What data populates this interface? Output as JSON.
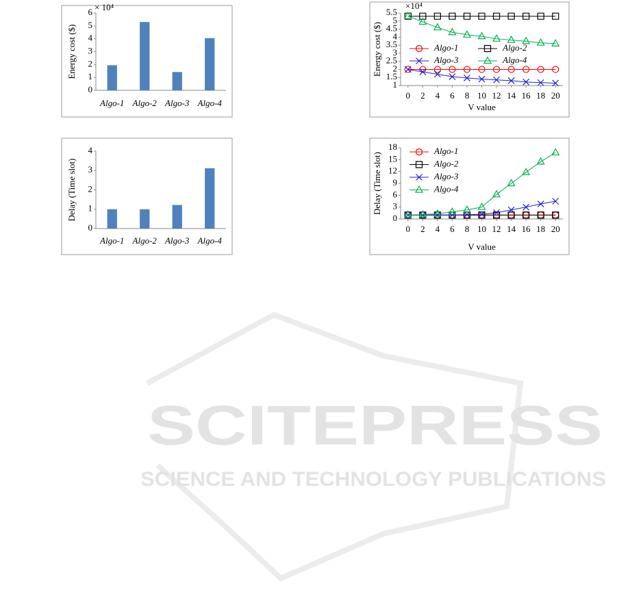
{
  "chart_data": [
    {
      "type": "bar",
      "ylabel": "Energy cost ($)",
      "multiplier": "× 10⁴",
      "categories": [
        "Algo-1",
        "Algo-2",
        "Algo-3",
        "Algo-4"
      ],
      "values": [
        1.95,
        5.3,
        1.42,
        4.05
      ],
      "color": "#4f81bd",
      "ylim": [
        0,
        6
      ],
      "yticks": [
        0,
        1,
        2,
        3,
        4,
        5,
        6
      ]
    },
    {
      "type": "line",
      "ylabel": "Energy cost ($)",
      "multiplier": "×10⁴",
      "xlabel": "V value",
      "x": [
        0,
        2,
        4,
        6,
        8,
        10,
        12,
        14,
        16,
        18,
        20
      ],
      "series": [
        {
          "name": "Algo-1",
          "color": "#ff0000",
          "marker": "circle",
          "values": [
            2.0,
            2.0,
            2.0,
            2.0,
            2.0,
            2.0,
            2.0,
            2.0,
            2.0,
            2.0,
            2.0
          ]
        },
        {
          "name": "Algo-2",
          "color": "#000000",
          "marker": "square",
          "values": [
            5.3,
            5.3,
            5.3,
            5.3,
            5.3,
            5.3,
            5.3,
            5.3,
            5.3,
            5.3,
            5.3
          ]
        },
        {
          "name": "Algo-3",
          "color": "#2222cc",
          "marker": "x",
          "values": [
            2.0,
            1.85,
            1.7,
            1.55,
            1.47,
            1.4,
            1.35,
            1.3,
            1.22,
            1.18,
            1.15
          ]
        },
        {
          "name": "Algo-4",
          "color": "#00b050",
          "marker": "triangle",
          "values": [
            5.3,
            4.95,
            4.6,
            4.3,
            4.15,
            4.05,
            3.9,
            3.82,
            3.75,
            3.65,
            3.6
          ]
        }
      ],
      "xlim": [
        -1,
        21
      ],
      "xticks": [
        0,
        2,
        4,
        6,
        8,
        10,
        12,
        14,
        16,
        18,
        20
      ],
      "ylim": [
        1,
        5.5
      ],
      "yticks": [
        1,
        1.5,
        2,
        2.5,
        3,
        3.5,
        4,
        4.5,
        5,
        5.5
      ]
    },
    {
      "type": "bar",
      "ylabel": "Delay (Time slot)",
      "categories": [
        "Algo-1",
        "Algo-2",
        "Algo-3",
        "Algo-4"
      ],
      "values": [
        1.0,
        1.0,
        1.22,
        3.12
      ],
      "color": "#4f81bd",
      "ylim": [
        0,
        4
      ],
      "yticks": [
        0,
        1,
        2,
        3,
        4
      ]
    },
    {
      "type": "line",
      "ylabel": "Delay (Time slot)",
      "xlabel": "V value",
      "x": [
        0,
        2,
        4,
        6,
        8,
        10,
        12,
        14,
        16,
        18,
        20
      ],
      "series": [
        {
          "name": "Algo-1",
          "color": "#ff0000",
          "marker": "circle",
          "values": [
            1,
            1,
            1,
            1,
            1,
            1,
            1,
            1,
            1,
            1,
            1
          ]
        },
        {
          "name": "Algo-2",
          "color": "#000000",
          "marker": "square",
          "values": [
            1,
            1,
            1,
            1,
            1,
            1,
            1,
            1,
            1,
            1,
            1
          ]
        },
        {
          "name": "Algo-3",
          "color": "#2222cc",
          "marker": "x",
          "values": [
            1,
            1,
            1,
            1,
            1.1,
            1.2,
            1.6,
            2.3,
            3.0,
            3.8,
            4.5
          ]
        },
        {
          "name": "Algo-4",
          "color": "#00b050",
          "marker": "triangle",
          "values": [
            1,
            1.1,
            1.3,
            1.8,
            2.3,
            3.0,
            6.2,
            9.0,
            11.8,
            14.5,
            16.8
          ]
        }
      ],
      "xlim": [
        -1,
        21
      ],
      "xticks": [
        0,
        2,
        4,
        6,
        8,
        10,
        12,
        14,
        16,
        18,
        20
      ],
      "ylim": [
        0,
        18
      ],
      "yticks": [
        0,
        3,
        6,
        9,
        12,
        15,
        18
      ]
    }
  ],
  "watermark": {
    "title": "SCITEPRESS",
    "subtitle": "SCIENCE AND TECHNOLOGY PUBLICATIONS"
  }
}
